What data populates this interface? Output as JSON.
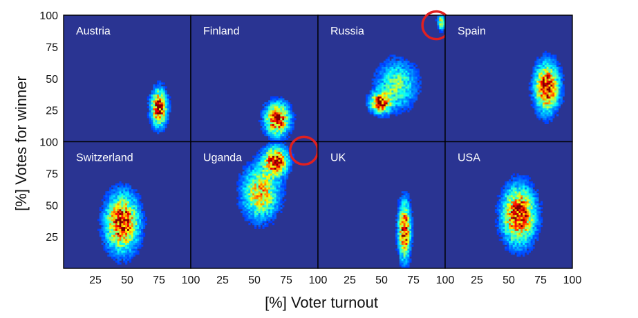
{
  "chart_data": {
    "type": "heatmap",
    "xlabel": "[%] Voter turnout",
    "ylabel": "[%] Votes for winner",
    "xlim": [
      0,
      100
    ],
    "ylim": [
      0,
      100
    ],
    "x_ticks": [
      25,
      50,
      75,
      100
    ],
    "y_ticks": [
      25,
      50,
      75,
      100
    ],
    "grid": false,
    "colormap": "jet",
    "background_color": "#2a3492",
    "highlight_color": "#e02020",
    "panels": [
      {
        "name": "Austria",
        "clusters": [
          {
            "x": 75,
            "y": 27,
            "sx": 4,
            "sy": 9,
            "w": 1.0
          }
        ],
        "highlight": null
      },
      {
        "name": "Finland",
        "clusters": [
          {
            "x": 68,
            "y": 18,
            "sx": 6,
            "sy": 8,
            "w": 1.0
          }
        ],
        "highlight": null
      },
      {
        "name": "Russia",
        "clusters": [
          {
            "x": 49,
            "y": 31,
            "sx": 5,
            "sy": 5,
            "w": 1.0
          },
          {
            "x": 62,
            "y": 45,
            "sx": 10,
            "sy": 12,
            "w": 0.45
          },
          {
            "x": 97,
            "y": 95,
            "sx": 2,
            "sy": 4,
            "w": 0.6
          }
        ],
        "highlight": {
          "x": 93,
          "y": 92
        }
      },
      {
        "name": "Spain",
        "clusters": [
          {
            "x": 80,
            "y": 43,
            "sx": 6,
            "sy": 12,
            "w": 1.0
          }
        ],
        "highlight": null
      },
      {
        "name": "Switzerland",
        "clusters": [
          {
            "x": 46,
            "y": 36,
            "sx": 8,
            "sy": 14,
            "w": 1.0
          }
        ],
        "highlight": null
      },
      {
        "name": "Uganda",
        "clusters": [
          {
            "x": 67,
            "y": 85,
            "sx": 6,
            "sy": 7,
            "w": 1.0
          },
          {
            "x": 55,
            "y": 60,
            "sx": 9,
            "sy": 13,
            "w": 0.7
          }
        ],
        "highlight": {
          "x": 89,
          "y": 93
        }
      },
      {
        "name": "UK",
        "clusters": [
          {
            "x": 68,
            "y": 30,
            "sx": 3,
            "sy": 14,
            "w": 1.0
          }
        ],
        "highlight": null
      },
      {
        "name": "USA",
        "clusters": [
          {
            "x": 58,
            "y": 42,
            "sx": 8,
            "sy": 14,
            "w": 1.0
          }
        ],
        "highlight": null
      }
    ]
  }
}
